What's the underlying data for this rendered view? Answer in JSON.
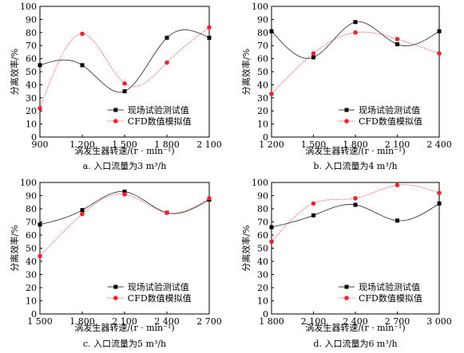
{
  "chart_data": [
    {
      "type": "scatter",
      "caption": "a. 入口流量为3 m³/h",
      "xlabel": "涡发生器转速/(r · min⁻¹)",
      "ylabel": "分离效率/%",
      "xlim": [
        900,
        2100
      ],
      "ylim": [
        0,
        100
      ],
      "xticks": [
        900,
        1200,
        1500,
        1800,
        2100
      ],
      "xtick_labels": [
        "900",
        "1 200",
        "1 500",
        "1 800",
        "2 100"
      ],
      "yticks": [
        0,
        10,
        20,
        30,
        40,
        50,
        60,
        70,
        80,
        90,
        100
      ],
      "x": [
        900,
        1200,
        1500,
        1800,
        2100
      ],
      "series": [
        {
          "name": "现场试验测试值",
          "color": "#000000",
          "marker": "square",
          "values": [
            55,
            55,
            35,
            76,
            76
          ]
        },
        {
          "name": "CFD数值模拟值",
          "color": "#e8262d",
          "marker": "circle",
          "values": [
            22,
            79,
            41,
            57,
            84
          ]
        }
      ],
      "legend": "bottom-right"
    },
    {
      "type": "scatter",
      "caption": "b. 入口流量为4 m³/h",
      "xlabel": "涡发生器转速/(r · min⁻¹)",
      "ylabel": "分离效率/%",
      "xlim": [
        1200,
        2400
      ],
      "ylim": [
        0,
        100
      ],
      "xticks": [
        1200,
        1500,
        1800,
        2100,
        2400
      ],
      "xtick_labels": [
        "1 200",
        "1 500",
        "1 800",
        "2 100",
        "2 400"
      ],
      "yticks": [
        0,
        10,
        20,
        30,
        40,
        50,
        60,
        70,
        80,
        90,
        100
      ],
      "x": [
        1200,
        1500,
        1800,
        2100,
        2400
      ],
      "series": [
        {
          "name": "现场试验测试值",
          "color": "#000000",
          "marker": "square",
          "values": [
            81,
            61,
            88,
            71,
            81
          ]
        },
        {
          "name": "CFD数值模拟值",
          "color": "#e8262d",
          "marker": "circle",
          "values": [
            33,
            64,
            80,
            75,
            64
          ]
        }
      ],
      "legend": "bottom-right"
    },
    {
      "type": "scatter",
      "caption": "c. 入口流量为5 m³/h",
      "xlabel": "涡发生器转速/(r · min⁻¹)",
      "ylabel": "分离效率/%",
      "xlim": [
        1500,
        2700
      ],
      "ylim": [
        0,
        100
      ],
      "xticks": [
        1500,
        1800,
        2100,
        2400,
        2700
      ],
      "xtick_labels": [
        "1 500",
        "1 800",
        "2 100",
        "2 400",
        "2 700"
      ],
      "yticks": [
        0,
        10,
        20,
        30,
        40,
        50,
        60,
        70,
        80,
        90,
        100
      ],
      "x": [
        1500,
        1800,
        2100,
        2400,
        2700
      ],
      "series": [
        {
          "name": "现场试验测试值",
          "color": "#000000",
          "marker": "square",
          "values": [
            68,
            79,
            93,
            77,
            87
          ]
        },
        {
          "name": "CFD数值模拟值",
          "color": "#e8262d",
          "marker": "circle",
          "values": [
            44,
            76,
            91,
            77,
            88
          ]
        }
      ],
      "legend": "bottom-right"
    },
    {
      "type": "scatter",
      "caption": "d. 入口流量为6 m³/h",
      "xlabel": "涡发生器转速/(r · min⁻¹)",
      "ylabel": "分离效率/%",
      "xlim": [
        1800,
        3000
      ],
      "ylim": [
        0,
        100
      ],
      "xticks": [
        1800,
        2100,
        2400,
        2700,
        3000
      ],
      "xtick_labels": [
        "1 800",
        "2 100",
        "2 400",
        "2 700",
        "3 000"
      ],
      "yticks": [
        0,
        10,
        20,
        30,
        40,
        50,
        60,
        70,
        80,
        90,
        100
      ],
      "x": [
        1800,
        2100,
        2400,
        2700,
        3000
      ],
      "series": [
        {
          "name": "现场试验测试值",
          "color": "#000000",
          "marker": "square",
          "values": [
            66,
            75,
            83,
            71,
            84
          ]
        },
        {
          "name": "CFD数值模拟值",
          "color": "#e8262d",
          "marker": "circle",
          "values": [
            55,
            84,
            88,
            98,
            92
          ]
        }
      ],
      "legend": "bottom-right"
    }
  ]
}
